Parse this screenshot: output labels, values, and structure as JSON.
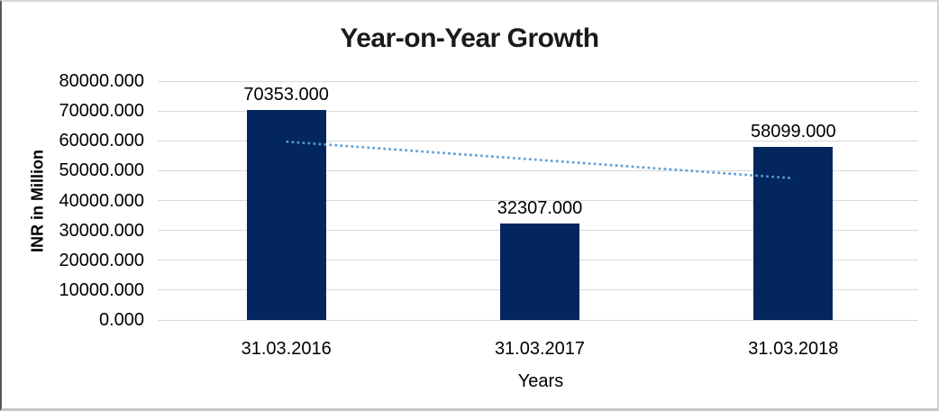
{
  "chart_data": {
    "type": "bar",
    "title": "Year-on-Year Growth",
    "xlabel": "Years",
    "ylabel": "INR in Million",
    "categories": [
      "31.03.2016",
      "31.03.2017",
      "31.03.2018"
    ],
    "values": [
      70353,
      32307,
      58099
    ],
    "data_labels": [
      "70353.000",
      "32307.000",
      "58099.000"
    ],
    "ylim": [
      0,
      80000
    ],
    "ytick_step": 10000,
    "ytick_labels": [
      "0.000",
      "10000.000",
      "20000.000",
      "30000.000",
      "40000.000",
      "50000.000",
      "60000.000",
      "70000.000",
      "80000.000"
    ],
    "grid": true,
    "legend": false,
    "bar_color": "#03265f",
    "trendline": {
      "type": "linear",
      "style": "dotted",
      "color": "#5b9bd5"
    }
  }
}
